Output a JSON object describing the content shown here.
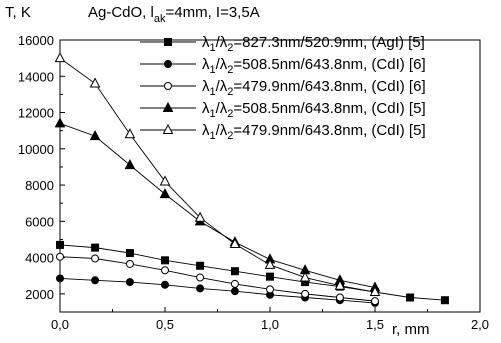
{
  "chart_data": {
    "type": "line",
    "title": {
      "y_unit": "T, K",
      "text_before_sub": "Ag-CdO, l",
      "subscript": "ak",
      "text_after_sub": "=4mm, I=3,5A"
    },
    "xlabel": "r, mm",
    "ylabel": "T, K",
    "xlim": [
      0.0,
      2.0
    ],
    "ylim": [
      1000,
      16000
    ],
    "x_ticks": [
      0.0,
      0.5,
      1.0,
      1.5,
      2.0
    ],
    "x_tick_labels": [
      "0,0",
      "0,5",
      "1,0",
      "1,5",
      "2,0"
    ],
    "y_ticks": [
      2000,
      4000,
      6000,
      8000,
      10000,
      12000,
      14000,
      16000
    ],
    "y_tick_labels": [
      "2000",
      "4000",
      "6000",
      "8000",
      "10000",
      "12000",
      "14000",
      "16000"
    ],
    "grid": false,
    "legend_position": "top-right",
    "series": [
      {
        "name": "λ1/λ2=827.3nm/520.9nm, (AgI) [5]",
        "legend": {
          "sym1": "λ",
          "sub1": "1",
          "mid": "/λ",
          "sub2": "2",
          "rest": "=827.3nm/520.9nm, (AgI) [5]"
        },
        "marker": "square-filled",
        "x": [
          0.0,
          0.167,
          0.333,
          0.5,
          0.667,
          0.833,
          1.0,
          1.167,
          1.333,
          1.5,
          1.667,
          1.833
        ],
        "y": [
          4700,
          4550,
          4250,
          3850,
          3550,
          3250,
          2950,
          2650,
          2400,
          2100,
          1800,
          1650
        ]
      },
      {
        "name": "λ1/λ2=508.5nm/643.8nm, (CdI) [6]",
        "legend": {
          "sym1": "λ",
          "sub1": "1",
          "mid": "/λ",
          "sub2": "2",
          "rest": "=508.5nm/643.8nm, (CdI) [6]"
        },
        "marker": "circle-filled",
        "x": [
          0.0,
          0.167,
          0.333,
          0.5,
          0.667,
          0.833,
          1.0,
          1.167,
          1.333,
          1.5
        ],
        "y": [
          2850,
          2750,
          2650,
          2500,
          2300,
          2150,
          1950,
          1800,
          1650,
          1500
        ]
      },
      {
        "name": "λ1/λ2=479.9nm/643.8nm, (CdI) [6]",
        "legend": {
          "sym1": "λ",
          "sub1": "1",
          "mid": "/λ",
          "sub2": "2",
          "rest": "=479.9nm/643.8nm, (CdI) [6]"
        },
        "marker": "circle-open",
        "x": [
          0.0,
          0.167,
          0.333,
          0.5,
          0.667,
          0.833,
          1.0,
          1.167,
          1.333,
          1.5
        ],
        "y": [
          4050,
          3950,
          3650,
          3300,
          2900,
          2550,
          2250,
          2000,
          1800,
          1600
        ]
      },
      {
        "name": "λ1/λ2=508.5nm/643.8nm, (CdI) [5]",
        "legend": {
          "sym1": "λ",
          "sub1": "1",
          "mid": "/λ",
          "sub2": "2",
          "rest": "=508.5nm/643.8nm, (CdI) [5]"
        },
        "marker": "triangle-filled",
        "x": [
          0.0,
          0.167,
          0.333,
          0.5,
          0.667,
          0.833,
          1.0,
          1.167,
          1.333,
          1.5
        ],
        "y": [
          11400,
          10700,
          9100,
          7500,
          6000,
          4850,
          3900,
          3300,
          2750,
          2350
        ]
      },
      {
        "name": "λ1/λ2=479.9nm/643.8nm, (CdI) [5]",
        "legend": {
          "sym1": "λ",
          "sub1": "1",
          "mid": "/λ",
          "sub2": "2",
          "rest": "=479.9nm/643.8nm, (CdI) [5]"
        },
        "marker": "triangle-open",
        "x": [
          0.0,
          0.167,
          0.333,
          0.5,
          0.667,
          0.833,
          1.0,
          1.167,
          1.333,
          1.5
        ],
        "y": [
          15000,
          13600,
          10800,
          8200,
          6200,
          4750,
          3600,
          2900,
          2450,
          2100
        ]
      }
    ]
  }
}
